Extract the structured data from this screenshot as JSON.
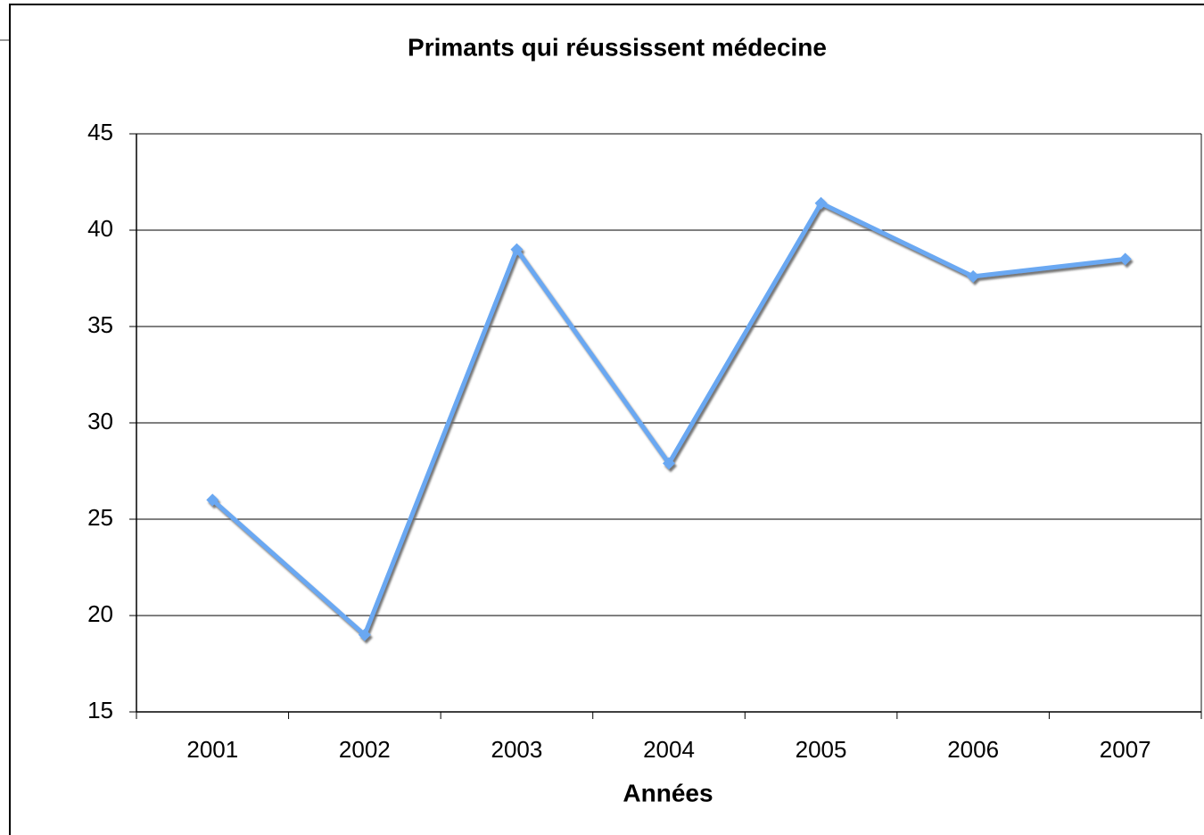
{
  "chart_data": {
    "type": "line",
    "title": "Primants qui réussissent médecine",
    "x_label": "Années",
    "categories": [
      "2001",
      "2002",
      "2003",
      "2004",
      "2005",
      "2006",
      "2007"
    ],
    "series": [
      {
        "name": "Primants",
        "color": "#6aa8f2",
        "values": [
          26,
          19,
          39,
          27.9,
          41.4,
          37.6,
          38.5
        ]
      }
    ],
    "ylim": [
      15,
      45
    ],
    "yticks": [
      15,
      20,
      25,
      30,
      35,
      40,
      45
    ],
    "grid": true
  }
}
